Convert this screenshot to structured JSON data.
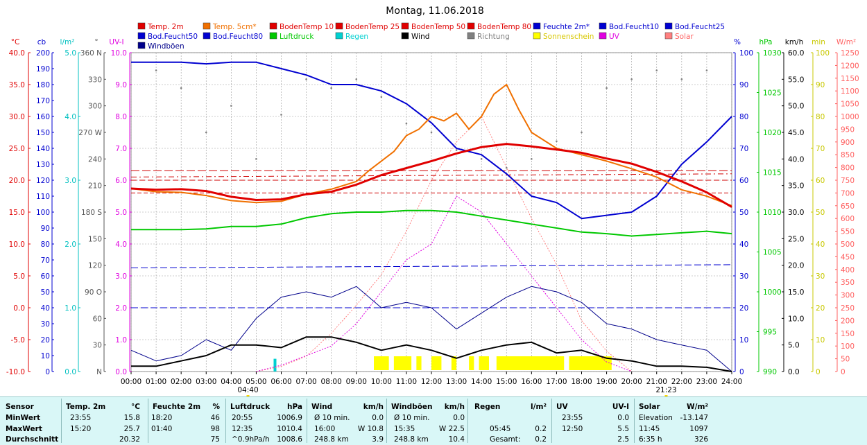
{
  "title": "Montag, 11.06.2018",
  "colors": {
    "temp2m": "#e00000",
    "temp5cm": "#f07000",
    "boden": "#d00000",
    "feuchte": "#0000d0",
    "luftdruck": "#00c800",
    "regen": "#00d0d0",
    "wind": "#000000",
    "richtung": "#808080",
    "sonne": "#ffff00",
    "uv": "#e000e0",
    "solar": "#ff8080",
    "windboen": "#00008b"
  },
  "legend": [
    {
      "label": "Temp. 2m",
      "color": "#e00000"
    },
    {
      "label": "Temp. 5cm*",
      "color": "#f07000"
    },
    {
      "label": "BodenTemp 10",
      "color": "#e00000"
    },
    {
      "label": "BodenTemp 25",
      "color": "#e00000"
    },
    {
      "label": "BodenTemp 50",
      "color": "#e00000"
    },
    {
      "label": "BodenTemp 80",
      "color": "#e00000"
    },
    {
      "label": "Feuchte 2m*",
      "color": "#0000d0"
    },
    {
      "label": "Bod.Feucht10",
      "color": "#0000d0"
    },
    {
      "label": "Bod.Feucht25",
      "color": "#0000d0"
    },
    {
      "label": "Bod.Feucht50",
      "color": "#0000d0"
    },
    {
      "label": "Bod.Feucht80",
      "color": "#0000d0"
    },
    {
      "label": "Luftdruck",
      "color": "#00c800"
    },
    {
      "label": "Regen",
      "color": "#00d0d0"
    },
    {
      "label": "Wind",
      "color": "#000000"
    },
    {
      "label": "Richtung",
      "color": "#808080"
    },
    {
      "label": "Sonnenschein",
      "color": "#ffff00"
    },
    {
      "label": "UV",
      "color": "#e000e0"
    },
    {
      "label": "Solar",
      "color": "#ff8080"
    },
    {
      "label": "Windböen",
      "color": "#00008b"
    }
  ],
  "chart_data": {
    "type": "line",
    "title": "Montag, 11.06.2018",
    "x_ticks": [
      "00:00",
      "01:00",
      "02:00",
      "03:00",
      "04:00",
      "05:00",
      "06:00",
      "07:00",
      "08:00",
      "09:00",
      "10:00",
      "11:00",
      "12:00",
      "13:00",
      "14:00",
      "15:00",
      "16:00",
      "17:00",
      "18:00",
      "19:00",
      "20:00",
      "21:00",
      "22:00",
      "23:00",
      "24:00"
    ],
    "xlim": [
      0,
      24
    ],
    "grid": true,
    "legend_position": "top",
    "sunrise": "04:40",
    "sunset": "21:23",
    "axes": [
      {
        "unit": "°C",
        "color": "#e00000",
        "ylim": [
          -10,
          40
        ],
        "ticks": [
          "40.0",
          "35.0",
          "30.0",
          "25.0",
          "20.0",
          "15.0",
          "10.0",
          "5.0",
          "0.0",
          "-5.0",
          "-10.0"
        ]
      },
      {
        "unit": "cb",
        "color": "#0000d0",
        "ylim": [
          0,
          200
        ],
        "ticks": [
          "200",
          "190",
          "180",
          "170",
          "160",
          "150",
          "140",
          "130",
          "120",
          "110",
          "100",
          "90",
          "80",
          "70",
          "60",
          "50",
          "40",
          "30",
          "20",
          "10",
          "0"
        ]
      },
      {
        "unit": "l/m²",
        "color": "#00c0c0",
        "ylim": [
          0,
          5
        ],
        "ticks": [
          "5.0",
          "4.0",
          "3.0",
          "2.0",
          "1.0",
          "0.0"
        ]
      },
      {
        "unit": "°",
        "color": "#555555",
        "ylim": [
          0,
          360
        ],
        "ticks": [
          "360 N",
          "330",
          "300",
          "270 W",
          "240",
          "210",
          "180 S",
          "150",
          "120",
          "90  O",
          "60",
          "30",
          "N"
        ]
      },
      {
        "unit": "UV-I",
        "color": "#e000e0",
        "ylim": [
          0,
          10
        ],
        "ticks": [
          "10.0",
          "9.0",
          "8.0",
          "7.0",
          "6.0",
          "5.0",
          "4.0",
          "3.0",
          "2.0",
          "1.0",
          "0.0"
        ]
      },
      {
        "unit": "%",
        "color": "#0000d0",
        "ylim": [
          0,
          100
        ],
        "ticks": [
          "100",
          "90",
          "80",
          "70",
          "60",
          "50",
          "40",
          "30",
          "20",
          "10",
          "0"
        ]
      },
      {
        "unit": "hPa",
        "color": "#00c800",
        "ylim": [
          990,
          1030
        ],
        "ticks": [
          "1030",
          "1025",
          "1020",
          "1015",
          "1010",
          "1005",
          "1000",
          "995",
          "990"
        ]
      },
      {
        "unit": "km/h",
        "color": "#000000",
        "ylim": [
          0,
          60
        ],
        "ticks": [
          "60.0",
          "55.0",
          "50.0",
          "45.0",
          "40.0",
          "35.0",
          "30.0",
          "25.0",
          "20.0",
          "15.0",
          "10.0",
          "5.0",
          "0.0"
        ]
      },
      {
        "unit": "min",
        "color": "#c8c800",
        "ylim": [
          0,
          100
        ],
        "ticks": [
          "100",
          "90",
          "80",
          "70",
          "60",
          "50",
          "40",
          "30",
          "20",
          "10",
          "0"
        ]
      },
      {
        "unit": "W/m²",
        "color": "#ff6060",
        "ylim": [
          0,
          1250
        ],
        "ticks": [
          "1250",
          "1200",
          "1150",
          "1100",
          "1050",
          "1000",
          "950",
          "900",
          "850",
          "800",
          "750",
          "700",
          "650",
          "600",
          "550",
          "500",
          "450",
          "400",
          "350",
          "300",
          "250",
          "200",
          "150",
          "100",
          "50",
          "0"
        ]
      }
    ],
    "series": [
      {
        "name": "Temp. 2m",
        "axis": "°C",
        "color": "#e00000",
        "x": [
          0,
          1,
          2,
          3,
          4,
          5,
          6,
          7,
          8,
          9,
          10,
          11,
          12,
          13,
          14,
          15,
          16,
          17,
          18,
          19,
          20,
          21,
          22,
          23,
          24
        ],
        "y": [
          18.7,
          18.5,
          18.6,
          18.3,
          17.4,
          16.9,
          17.0,
          17.8,
          18.2,
          19.3,
          20.8,
          21.9,
          23.0,
          24.2,
          25.2,
          25.7,
          25.3,
          24.8,
          24.3,
          23.4,
          22.6,
          21.3,
          19.8,
          18.1,
          15.8
        ]
      },
      {
        "name": "Temp. 5cm*",
        "axis": "°C",
        "color": "#f07000",
        "x": [
          0,
          1,
          2,
          3,
          4,
          5,
          6,
          7,
          8,
          9,
          9.5,
          10,
          10.5,
          11,
          11.5,
          12,
          12.5,
          13,
          13.5,
          14,
          14.5,
          15,
          15.5,
          16,
          17,
          18,
          19,
          20,
          21,
          22,
          23,
          24
        ],
        "y": [
          18.7,
          18.2,
          18.1,
          17.6,
          16.8,
          16.5,
          16.7,
          17.8,
          18.6,
          19.8,
          21.5,
          23.0,
          24.5,
          27.0,
          28.0,
          30.0,
          29.3,
          30.5,
          28.0,
          30.0,
          33.5,
          35.0,
          31.0,
          27.5,
          25.0,
          24.0,
          23.0,
          21.8,
          20.5,
          18.5,
          17.5,
          16.0
        ]
      },
      {
        "name": "Feuchte 2m*",
        "axis": "%",
        "color": "#0000d0",
        "x": [
          0,
          1,
          2,
          3,
          4,
          5,
          6,
          7,
          8,
          9,
          10,
          11,
          12,
          13,
          14,
          15,
          16,
          17,
          18,
          19,
          20,
          21,
          22,
          23,
          24
        ],
        "y": [
          97,
          97,
          97,
          96.5,
          97,
          97,
          95,
          93,
          90,
          90,
          88,
          84,
          78,
          70,
          68,
          62,
          55,
          53,
          48,
          49,
          50,
          55,
          65,
          72,
          80
        ]
      },
      {
        "name": "Luftdruck",
        "axis": "hPa",
        "color": "#00c800",
        "x": [
          0,
          1,
          2,
          3,
          4,
          5,
          6,
          7,
          8,
          9,
          10,
          11,
          12,
          13,
          14,
          15,
          16,
          17,
          18,
          19,
          20,
          21,
          22,
          23,
          24
        ],
        "y": [
          1007.8,
          1007.8,
          1007.8,
          1007.9,
          1008.2,
          1008.2,
          1008.5,
          1009.3,
          1009.8,
          1010.0,
          1010.0,
          1010.2,
          1010.2,
          1010.0,
          1009.5,
          1009.0,
          1008.5,
          1008.0,
          1007.5,
          1007.3,
          1007.0,
          1007.2,
          1007.4,
          1007.6,
          1007.3
        ]
      },
      {
        "name": "BodenTemp 10",
        "axis": "°C",
        "color": "#d00000",
        "x": [
          0,
          24
        ],
        "y": [
          20.0,
          20.0
        ]
      },
      {
        "name": "BodenTemp 25",
        "axis": "°C",
        "color": "#d00000",
        "x": [
          0,
          24
        ],
        "y": [
          20.5,
          21.0
        ]
      },
      {
        "name": "BodenTemp 50",
        "axis": "°C",
        "color": "#d00000",
        "x": [
          0,
          24
        ],
        "y": [
          21.5,
          21.5
        ]
      },
      {
        "name": "BodenTemp 80",
        "axis": "°C",
        "color": "#d00000",
        "x": [
          0,
          24
        ],
        "y": [
          18.0,
          18.0
        ]
      },
      {
        "name": "Bod.Feucht50",
        "axis": "cb",
        "color": "#0000d0",
        "x": [
          0,
          24
        ],
        "y": [
          65,
          67
        ]
      },
      {
        "name": "Bod.Feucht10",
        "axis": "cb",
        "color": "#0000d0",
        "x": [
          0,
          24
        ],
        "y": [
          40,
          40
        ]
      },
      {
        "name": "Wind",
        "axis": "km/h",
        "color": "#000000",
        "x": [
          0,
          1,
          2,
          3,
          4,
          5,
          6,
          7,
          8,
          9,
          10,
          11,
          12,
          13,
          14,
          15,
          16,
          17,
          18,
          19,
          20,
          21,
          22,
          23,
          24
        ],
        "y": [
          1.0,
          1.0,
          2.0,
          3.0,
          5.0,
          5.0,
          4.5,
          6.5,
          6.5,
          5.5,
          4.0,
          5.0,
          4.0,
          2.5,
          4.0,
          5.0,
          5.5,
          3.5,
          4.0,
          2.5,
          2.0,
          1.0,
          1.0,
          0.8,
          0.0
        ]
      },
      {
        "name": "Windböen",
        "axis": "km/h",
        "color": "#00008b",
        "x": [
          0,
          1,
          2,
          3,
          4,
          5,
          6,
          7,
          8,
          9,
          10,
          11,
          12,
          13,
          14,
          15,
          16,
          17,
          18,
          19,
          20,
          21,
          22,
          23,
          24
        ],
        "y": [
          4,
          2,
          3,
          6,
          4,
          10,
          14,
          15,
          14,
          16,
          12,
          13,
          12,
          8,
          11,
          14,
          16,
          15,
          13,
          9,
          8,
          6,
          5,
          4,
          0
        ]
      },
      {
        "name": "UV",
        "axis": "UV-I",
        "color": "#e000e0",
        "x": [
          5,
          6,
          7,
          8,
          9,
          10,
          11,
          12,
          13,
          14,
          15,
          16,
          17,
          18,
          19,
          20
        ],
        "y": [
          0.0,
          0.2,
          0.5,
          0.8,
          1.5,
          2.5,
          3.5,
          4.0,
          5.5,
          5.0,
          4.0,
          3.0,
          2.0,
          1.0,
          0.3,
          0.0
        ]
      },
      {
        "name": "Solar",
        "axis": "W/m²",
        "color": "#ff8080",
        "x": [
          5,
          6,
          7,
          8,
          9,
          10,
          11,
          12,
          13,
          14,
          15,
          16,
          17,
          18,
          19,
          20
        ],
        "y": [
          0,
          20,
          60,
          150,
          260,
          380,
          550,
          750,
          900,
          1000,
          800,
          600,
          420,
          200,
          80,
          0
        ]
      },
      {
        "name": "Richtung",
        "axis": "°",
        "color": "#808080",
        "x": [
          1,
          2,
          3,
          4,
          5,
          6,
          7,
          8,
          9,
          10,
          11,
          12,
          13,
          14,
          15,
          16,
          17,
          18,
          19,
          20,
          21,
          22,
          23
        ],
        "y": [
          340,
          320,
          270,
          300,
          240,
          290,
          330,
          320,
          330,
          310,
          280,
          270,
          250,
          240,
          230,
          240,
          260,
          270,
          320,
          330,
          340,
          330,
          340
        ]
      },
      {
        "name": "Regen",
        "axis": "l/m²",
        "color": "#00d0d0",
        "x": [
          5.75
        ],
        "y": [
          0.2
        ]
      },
      {
        "name": "Sonnenschein",
        "axis": "min",
        "color": "#ffff00",
        "segments": [
          [
            9.7,
            10.3
          ],
          [
            10.5,
            11.2
          ],
          [
            11.4,
            11.6
          ],
          [
            12.0,
            12.4
          ],
          [
            12.8,
            13.0
          ],
          [
            13.5,
            13.7
          ],
          [
            13.9,
            14.3
          ],
          [
            14.6,
            17.3
          ],
          [
            17.5,
            19.2
          ]
        ]
      }
    ]
  },
  "stats": {
    "headers": {
      "sensor": "Sensor",
      "temp_label": "Temp. 2m",
      "temp_unit": "°C",
      "feuchte_label": "Feuchte 2m",
      "feuchte_unit": "%",
      "luft_label": "Luftdruck",
      "luft_unit": "hPa",
      "wind_label": "Wind",
      "wind_unit": "km/h",
      "boen_label": "Windböen",
      "boen_unit": "km/h",
      "regen_label": "Regen",
      "regen_unit": "l/m²",
      "uv_label": "UV",
      "uv_unit": "UV-I",
      "solar_label": "Solar",
      "solar_unit": "W/m²"
    },
    "rows": [
      {
        "label": "MinWert",
        "temp_time": "23:55",
        "temp_val": "15.8",
        "feuchte_time": "18:20",
        "feuchte_val": "46",
        "luft_time": "20:55",
        "luft_val": "1006.9",
        "wind_time": "Ø 10 min.",
        "wind_val": "0.0",
        "boen_time": "Ø 10 min.",
        "boen_val": "0.0",
        "regen_time": "",
        "regen_val": "",
        "uv_time": "23:55",
        "uv_val": "0.0",
        "solar_time": "Elevation",
        "solar_val": "-13.147"
      },
      {
        "label": "MaxWert",
        "temp_time": "15:20",
        "temp_val": "25.7",
        "feuchte_time": "01:40",
        "feuchte_val": "98",
        "luft_time": "12:35",
        "luft_val": "1010.4",
        "wind_time": "16:00",
        "wind_val": "W 10.8",
        "boen_time": "15:35",
        "boen_val": "W 22.5",
        "regen_time": "05:45",
        "regen_val": "0.2",
        "uv_time": "12:50",
        "uv_val": "5.5",
        "solar_time": "11:45",
        "solar_val": "1097"
      },
      {
        "label": "Durchschnitt",
        "temp_time": "",
        "temp_val": "20.32",
        "feuchte_time": "",
        "feuchte_val": "75",
        "luft_time": "^0.9hPa/h",
        "luft_val": "1008.6",
        "wind_time": "248.8 km",
        "wind_val": "3.9",
        "boen_time": "248.8 km",
        "boen_val": "10.4",
        "regen_time": "Gesamt:",
        "regen_val": "0.2",
        "uv_time": "",
        "uv_val": "2.5",
        "solar_time": "6:35 h",
        "solar_val": "326"
      }
    ]
  }
}
